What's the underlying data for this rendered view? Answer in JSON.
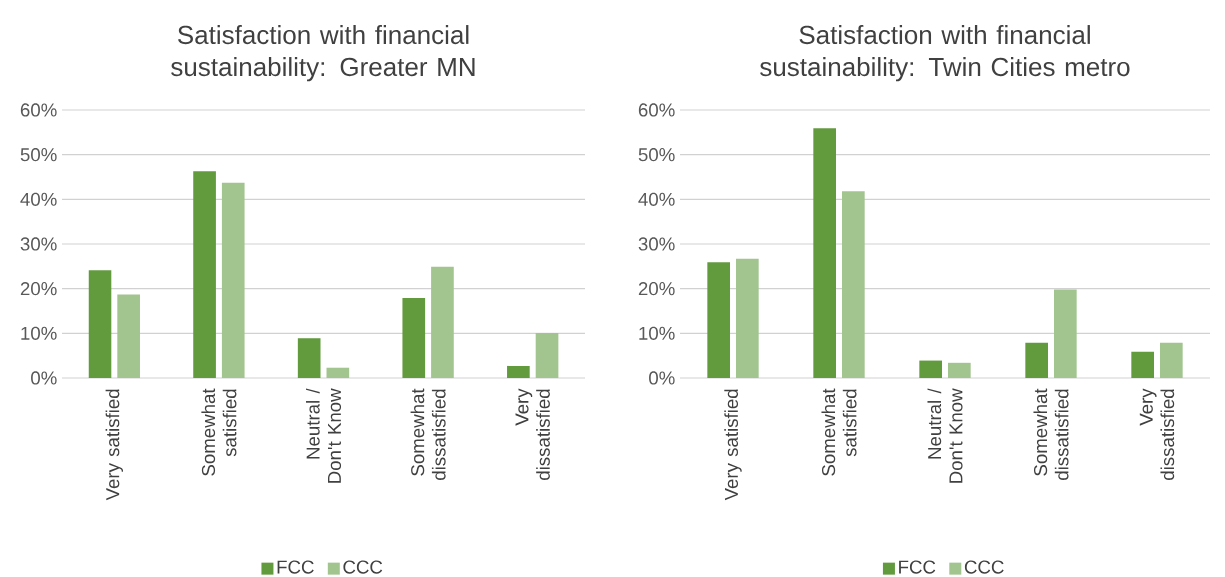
{
  "chart_data": [
    {
      "type": "bar",
      "title": "Satisfaction with financial sustainability: Greater MN",
      "categories": [
        "Very satisfied",
        "Somewhat satisfied",
        "Neutral / Don't Know",
        "Somewhat dissatisfied",
        "Very dissatisfied"
      ],
      "series": [
        {
          "name": "FCC",
          "color": "#629a3e",
          "values": [
            24.1,
            46.3,
            8.9,
            17.9,
            2.7
          ]
        },
        {
          "name": "CCC",
          "color": "#a2c48f",
          "values": [
            18.7,
            43.7,
            2.3,
            24.9,
            10.1
          ]
        }
      ],
      "ylim": [
        0,
        60
      ],
      "yticks": [
        {
          "value": 0,
          "label": "0%"
        },
        {
          "value": 10,
          "label": "10%"
        },
        {
          "value": 20,
          "label": "20%"
        },
        {
          "value": 30,
          "label": "30%"
        },
        {
          "value": 40,
          "label": "40%"
        },
        {
          "value": 50,
          "label": "50%"
        },
        {
          "value": 60,
          "label": "60%"
        }
      ],
      "grid": "y",
      "legend": "bottom"
    },
    {
      "type": "bar",
      "title": "Satisfaction with financial sustainability: Twin Cities metro",
      "categories": [
        "Very satisfied",
        "Somewhat satisfied",
        "Neutral / Don't Know",
        "Somewhat dissatisfied",
        "Very dissatisfied"
      ],
      "series": [
        {
          "name": "FCC",
          "color": "#629a3e",
          "values": [
            25.9,
            55.9,
            3.9,
            7.9,
            5.9
          ]
        },
        {
          "name": "CCC",
          "color": "#a2c48f",
          "values": [
            26.7,
            41.8,
            3.4,
            19.8,
            7.9
          ]
        }
      ],
      "ylim": [
        0,
        60
      ],
      "yticks": [
        {
          "value": 0,
          "label": "0%"
        },
        {
          "value": 10,
          "label": "10%"
        },
        {
          "value": 20,
          "label": "20%"
        },
        {
          "value": 30,
          "label": "30%"
        },
        {
          "value": 40,
          "label": "40%"
        },
        {
          "value": 50,
          "label": "50%"
        },
        {
          "value": 60,
          "label": "60%"
        }
      ],
      "grid": "y",
      "legend": "bottom"
    }
  ]
}
